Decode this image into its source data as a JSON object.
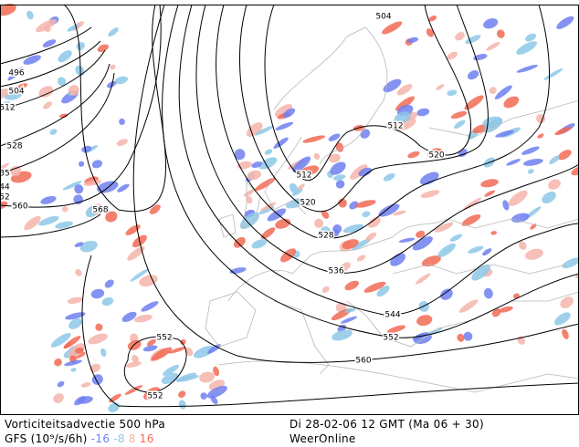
{
  "map": {
    "contour_labels": [
      496,
      504,
      512,
      528,
      35,
      44,
      52,
      560,
      568,
      504,
      512,
      520,
      512,
      520,
      528,
      536,
      544,
      552,
      560,
      552,
      552
    ]
  },
  "footer": {
    "title": "Vorticiteitsadvectie 500 hPa",
    "units": "GFS (10⁹/s/6h)",
    "legend": [
      {
        "value": -16,
        "color": "#6f7ff0"
      },
      {
        "value": -8,
        "color": "#8ec8e8"
      },
      {
        "value": 8,
        "color": "#f4b4aa"
      },
      {
        "value": 16,
        "color": "#f26a55"
      }
    ],
    "date": "Di 28-02-06 12 GMT (Ma 06 + 30)",
    "source": "WeerOnline"
  }
}
